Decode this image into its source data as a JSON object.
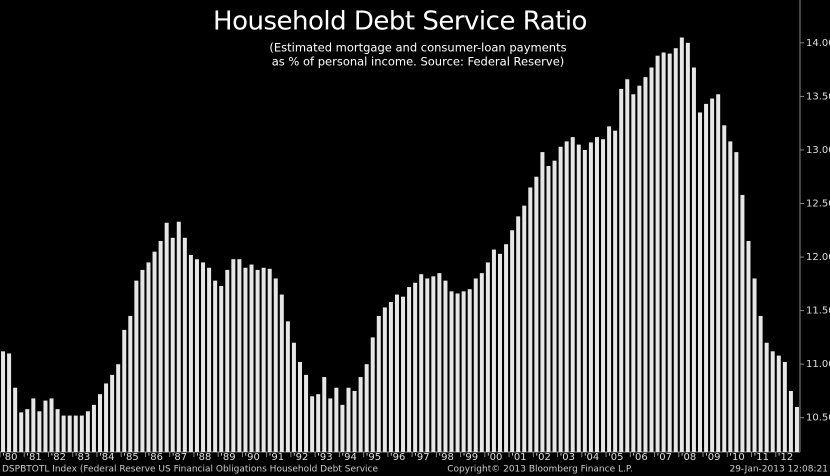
{
  "chart_data": {
    "type": "bar",
    "title": "Household Debt Service Ratio",
    "subtitle": [
      "(Estimated mortgage and consumer-loan payments",
      "as % of personal income. Source: Federal Reserve)"
    ],
    "footer": {
      "left": "DSPBTOTL Index (Federal Reserve US Financial Obligations Household Debt Service",
      "center": "Copyright© 2013 Bloomberg Finance L.P.",
      "right": "29-Jan-2013 12:08:21"
    },
    "color": "#e6e6e6",
    "categories": [
      "'80",
      null,
      null,
      null,
      "'81",
      null,
      null,
      null,
      "'82",
      null,
      null,
      null,
      "'83",
      null,
      null,
      null,
      "'84",
      null,
      null,
      null,
      "'85",
      null,
      null,
      null,
      "'86",
      null,
      null,
      null,
      "'87",
      null,
      null,
      null,
      "'88",
      null,
      null,
      null,
      "'89",
      null,
      null,
      null,
      "'90",
      null,
      null,
      null,
      "'91",
      null,
      null,
      null,
      "'92",
      null,
      null,
      null,
      "'93",
      null,
      null,
      null,
      "'94",
      null,
      null,
      null,
      "'95",
      null,
      null,
      null,
      "'96",
      null,
      null,
      null,
      "'97",
      null,
      null,
      null,
      "'98",
      null,
      null,
      null,
      "'99",
      null,
      null,
      null,
      "'00",
      null,
      null,
      null,
      "'01",
      null,
      null,
      null,
      "'02",
      null,
      null,
      null,
      "'03",
      null,
      null,
      null,
      "'04",
      null,
      null,
      null,
      "'05",
      null,
      null,
      null,
      "'06",
      null,
      null,
      null,
      "'07",
      null,
      null,
      null,
      "'08",
      null,
      null,
      null,
      "'09",
      null,
      null,
      null,
      "'10",
      null,
      null,
      null,
      "'11",
      null,
      null,
      null,
      "'12",
      null,
      null,
      null
    ],
    "values": [
      11.12,
      11.1,
      10.78,
      10.55,
      10.58,
      10.68,
      10.56,
      10.66,
      10.68,
      10.58,
      10.52,
      10.52,
      10.52,
      10.52,
      10.56,
      10.62,
      10.72,
      10.82,
      10.9,
      11.0,
      11.32,
      11.45,
      11.78,
      11.88,
      11.95,
      12.05,
      12.15,
      12.32,
      12.18,
      12.33,
      12.18,
      12.02,
      11.98,
      11.95,
      11.9,
      11.78,
      11.73,
      11.88,
      11.98,
      11.98,
      11.9,
      11.93,
      11.88,
      11.9,
      11.89,
      11.8,
      11.65,
      11.4,
      11.2,
      11.02,
      10.9,
      10.7,
      10.72,
      10.88,
      10.68,
      10.78,
      10.62,
      10.78,
      10.75,
      10.88,
      11.0,
      11.25,
      11.45,
      11.53,
      11.58,
      11.65,
      11.63,
      11.72,
      11.76,
      11.84,
      11.8,
      11.82,
      11.85,
      11.78,
      11.68,
      11.66,
      11.68,
      11.7,
      11.8,
      11.85,
      11.95,
      12.07,
      12.03,
      12.12,
      12.25,
      12.38,
      12.48,
      12.65,
      12.75,
      12.98,
      12.85,
      12.9,
      13.03,
      13.08,
      13.12,
      13.05,
      13.0,
      13.07,
      13.12,
      13.1,
      13.22,
      13.18,
      13.57,
      13.66,
      13.52,
      13.6,
      13.68,
      13.77,
      13.88,
      13.91,
      13.9,
      13.95,
      14.05,
      14.0,
      13.77,
      13.35,
      13.43,
      13.48,
      13.52,
      13.23,
      13.08,
      12.98,
      12.58,
      12.15,
      11.8,
      11.45,
      11.2,
      11.12,
      11.08,
      11.02,
      10.75,
      10.6
    ],
    "ylim": [
      10.18,
      14.4
    ],
    "yticks": [
      {
        "value": 10.5,
        "label": "10.50"
      },
      {
        "value": 11,
        "label": "11.00"
      },
      {
        "value": 11.5,
        "label": "11.50"
      },
      {
        "value": 12,
        "label": "12.00"
      },
      {
        "value": 12.5,
        "label": "12.50"
      },
      {
        "value": 13,
        "label": "13.00"
      },
      {
        "value": 13.5,
        "label": "13.50"
      },
      {
        "value": 14,
        "label": "14.00"
      }
    ]
  }
}
